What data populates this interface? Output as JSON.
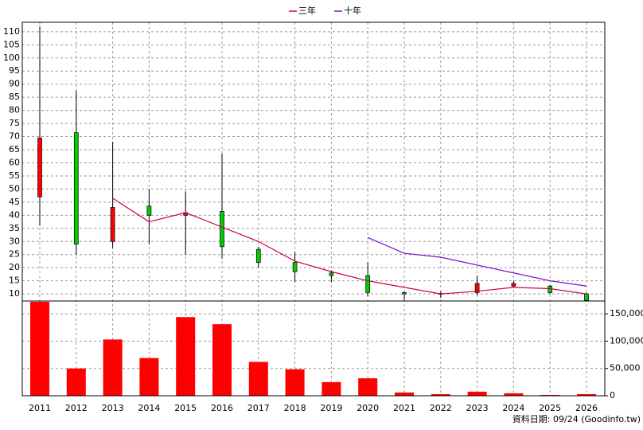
{
  "chart_data": {
    "type": "candlestick",
    "categories": [
      "2011",
      "2012",
      "2013",
      "2014",
      "2015",
      "2016",
      "2017",
      "2018",
      "2019",
      "2020",
      "2021",
      "2022",
      "2023",
      "2024",
      "2025",
      "2026"
    ],
    "candles": {
      "up_color": "#ff0000",
      "down_color": "#00cc00",
      "open": [
        47,
        71.5,
        30,
        43.5,
        40,
        41.5,
        27,
        22,
        18,
        17,
        10.5,
        10.2,
        10.5,
        13,
        13,
        10
      ],
      "high": [
        112,
        87.5,
        68,
        50,
        49,
        63.5,
        28,
        26,
        19,
        22,
        11,
        11,
        17,
        15,
        13.5,
        10.5
      ],
      "low": [
        36,
        25,
        27.5,
        29,
        25,
        23.5,
        20,
        14.5,
        14.5,
        9,
        7.5,
        8.5,
        9.5,
        12.5,
        10,
        7.5
      ],
      "close": [
        69.5,
        29,
        43,
        40,
        41,
        28,
        22,
        18.5,
        17,
        10.5,
        10,
        10,
        14,
        14,
        10.5,
        7.5
      ]
    },
    "series": [
      {
        "name": "三年",
        "color": "#d0004a",
        "values": [
          null,
          null,
          46.5,
          37.5,
          41,
          35.5,
          30,
          22.5,
          18.5,
          15,
          12.5,
          10,
          11,
          12.5,
          12,
          10
        ]
      },
      {
        "name": "十年",
        "color": "#8010d0",
        "values": [
          null,
          null,
          null,
          null,
          null,
          null,
          null,
          null,
          null,
          31.5,
          25.5,
          24,
          21,
          18,
          15,
          13
        ]
      }
    ],
    "volume": {
      "color": "#ff0000",
      "values": [
        172000,
        50000,
        103000,
        69000,
        144000,
        131000,
        62000,
        48500,
        25000,
        32000,
        6000,
        3000,
        7500,
        4500,
        1500,
        3000
      ]
    },
    "ylim": [
      7.3,
      113.6
    ],
    "yticks": [
      10,
      15,
      20,
      25,
      30,
      35,
      40,
      45,
      50,
      55,
      60,
      65,
      70,
      75,
      80,
      85,
      90,
      95,
      100,
      105,
      110
    ],
    "y2lim": [
      0,
      173500
    ],
    "y2ticks": [
      0,
      {
        "value": 50000,
        "label": "50,000"
      },
      {
        "value": 100000,
        "label": "100,000"
      },
      {
        "value": 150000,
        "label": "150,000"
      }
    ],
    "grid": true,
    "footer": "資料日期: 09/24  (Goodinfo.tw)"
  }
}
